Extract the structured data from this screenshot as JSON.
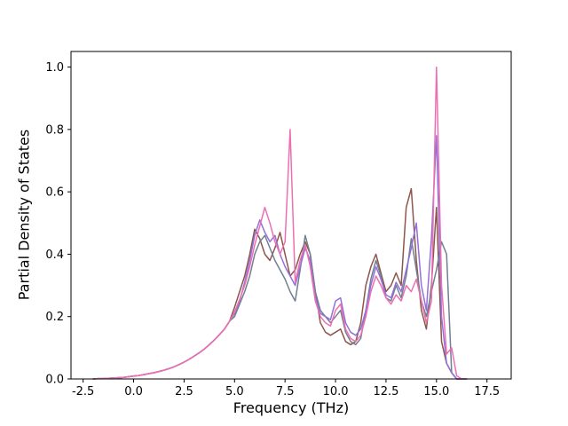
{
  "chart_data": {
    "type": "line",
    "title": "",
    "xlabel": "Frequency (THz)",
    "ylabel": "Partial Density of States",
    "xlim": [
      -3.1,
      18.7
    ],
    "ylim": [
      0,
      1.05
    ],
    "grid": false,
    "legend": "none",
    "xticks": [
      -2.5,
      0.0,
      2.5,
      5.0,
      7.5,
      10.0,
      12.5,
      15.0,
      17.5
    ],
    "xtick_labels": [
      "-2.5",
      "0.0",
      "2.5",
      "5.0",
      "7.5",
      "10.0",
      "12.5",
      "15.0",
      "17.5"
    ],
    "yticks": [
      0.0,
      0.2,
      0.4,
      0.6,
      0.8,
      1.0
    ],
    "ytick_labels": [
      "0.0",
      "0.2",
      "0.4",
      "0.6",
      "0.8",
      "1.0"
    ],
    "x": [
      -2.0,
      -1.75,
      -1.5,
      -1.25,
      -1.0,
      -0.75,
      -0.5,
      -0.25,
      0.0,
      0.25,
      0.5,
      0.75,
      1.0,
      1.25,
      1.5,
      1.75,
      2.0,
      2.25,
      2.5,
      2.75,
      3.0,
      3.25,
      3.5,
      3.75,
      4.0,
      4.25,
      4.5,
      4.75,
      5.0,
      5.25,
      5.5,
      5.75,
      6.0,
      6.25,
      6.5,
      6.75,
      7.0,
      7.25,
      7.5,
      7.75,
      8.0,
      8.25,
      8.5,
      8.75,
      9.0,
      9.25,
      9.5,
      9.75,
      10.0,
      10.25,
      10.5,
      10.75,
      11.0,
      11.25,
      11.5,
      11.75,
      12.0,
      12.25,
      12.5,
      12.75,
      13.0,
      13.25,
      13.5,
      13.75,
      14.0,
      14.25,
      14.5,
      14.75,
      15.0,
      15.25,
      15.5,
      15.75,
      16.0,
      16.25,
      16.5
    ],
    "series": [
      {
        "name": "brown",
        "color": "#8c564b",
        "values": [
          0.0,
          0.001,
          0.001,
          0.002,
          0.003,
          0.004,
          0.005,
          0.007,
          0.009,
          0.011,
          0.014,
          0.017,
          0.02,
          0.024,
          0.028,
          0.033,
          0.039,
          0.046,
          0.054,
          0.063,
          0.073,
          0.084,
          0.096,
          0.11,
          0.125,
          0.142,
          0.16,
          0.185,
          0.23,
          0.28,
          0.33,
          0.4,
          0.48,
          0.45,
          0.4,
          0.38,
          0.42,
          0.47,
          0.4,
          0.33,
          0.35,
          0.4,
          0.44,
          0.4,
          0.28,
          0.18,
          0.15,
          0.14,
          0.15,
          0.16,
          0.12,
          0.11,
          0.12,
          0.18,
          0.3,
          0.36,
          0.4,
          0.34,
          0.28,
          0.3,
          0.34,
          0.3,
          0.55,
          0.61,
          0.38,
          0.22,
          0.16,
          0.3,
          0.55,
          0.12,
          0.05,
          0.02,
          0.0,
          0.0,
          0.0
        ]
      },
      {
        "name": "gray",
        "color": "#708090",
        "values": [
          0.0,
          0.001,
          0.001,
          0.002,
          0.003,
          0.004,
          0.005,
          0.007,
          0.009,
          0.011,
          0.014,
          0.017,
          0.02,
          0.024,
          0.028,
          0.033,
          0.039,
          0.046,
          0.054,
          0.063,
          0.073,
          0.084,
          0.096,
          0.11,
          0.125,
          0.142,
          0.16,
          0.185,
          0.2,
          0.24,
          0.28,
          0.33,
          0.4,
          0.44,
          0.46,
          0.42,
          0.38,
          0.35,
          0.32,
          0.28,
          0.25,
          0.35,
          0.46,
          0.4,
          0.28,
          0.22,
          0.2,
          0.18,
          0.2,
          0.22,
          0.15,
          0.12,
          0.11,
          0.13,
          0.22,
          0.32,
          0.38,
          0.33,
          0.26,
          0.25,
          0.3,
          0.26,
          0.33,
          0.45,
          0.35,
          0.25,
          0.2,
          0.28,
          0.35,
          0.44,
          0.4,
          0.02,
          0.0,
          0.0,
          0.0
        ]
      },
      {
        "name": "purple",
        "color": "#9370db",
        "values": [
          0.0,
          0.001,
          0.001,
          0.002,
          0.003,
          0.004,
          0.005,
          0.007,
          0.009,
          0.011,
          0.014,
          0.017,
          0.02,
          0.024,
          0.028,
          0.033,
          0.039,
          0.046,
          0.054,
          0.063,
          0.073,
          0.084,
          0.096,
          0.11,
          0.125,
          0.142,
          0.16,
          0.185,
          0.21,
          0.25,
          0.31,
          0.38,
          0.46,
          0.51,
          0.47,
          0.44,
          0.46,
          0.4,
          0.36,
          0.33,
          0.3,
          0.36,
          0.42,
          0.38,
          0.26,
          0.21,
          0.2,
          0.19,
          0.25,
          0.26,
          0.18,
          0.15,
          0.14,
          0.16,
          0.22,
          0.3,
          0.36,
          0.32,
          0.27,
          0.26,
          0.31,
          0.28,
          0.35,
          0.42,
          0.5,
          0.3,
          0.22,
          0.45,
          0.78,
          0.2,
          0.05,
          0.02,
          0.0,
          0.0,
          0.0
        ]
      },
      {
        "name": "pink",
        "color": "#ed6fb1",
        "values": [
          0.0,
          0.001,
          0.001,
          0.002,
          0.003,
          0.004,
          0.005,
          0.007,
          0.009,
          0.011,
          0.014,
          0.017,
          0.02,
          0.024,
          0.028,
          0.033,
          0.039,
          0.046,
          0.054,
          0.063,
          0.073,
          0.084,
          0.096,
          0.11,
          0.125,
          0.142,
          0.16,
          0.185,
          0.215,
          0.255,
          0.3,
          0.36,
          0.43,
          0.49,
          0.55,
          0.5,
          0.44,
          0.4,
          0.44,
          0.8,
          0.31,
          0.38,
          0.43,
          0.36,
          0.25,
          0.2,
          0.18,
          0.17,
          0.22,
          0.24,
          0.16,
          0.13,
          0.12,
          0.14,
          0.2,
          0.28,
          0.33,
          0.3,
          0.26,
          0.24,
          0.27,
          0.25,
          0.3,
          0.28,
          0.32,
          0.25,
          0.18,
          0.25,
          1.0,
          0.3,
          0.08,
          0.1,
          0.01,
          0.0,
          0.0
        ]
      }
    ]
  }
}
